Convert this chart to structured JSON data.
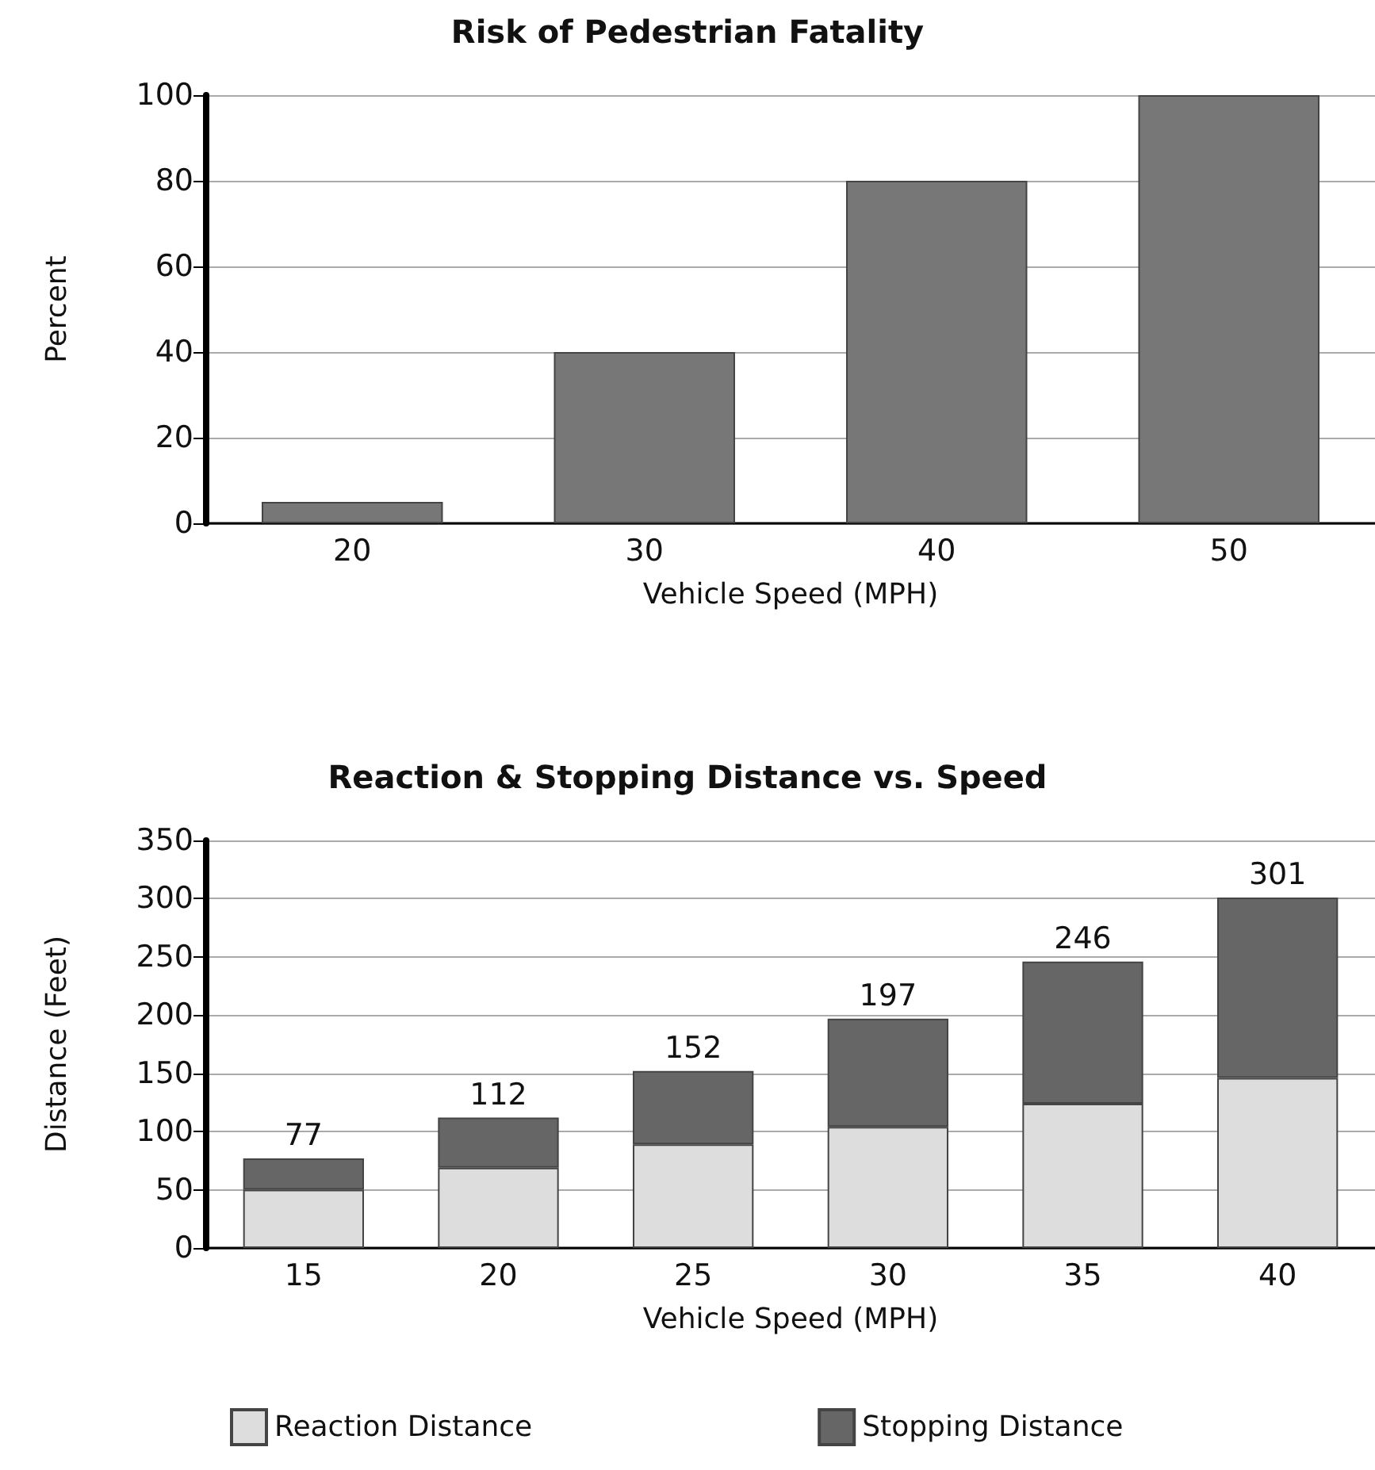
{
  "chart_data": [
    {
      "type": "bar",
      "title": "Risk of Pedestrian Fatality",
      "xlabel": "Vehicle Speed (MPH)",
      "ylabel": "Percent",
      "categories": [
        "20",
        "30",
        "40",
        "50"
      ],
      "values": [
        5,
        40,
        80,
        100
      ],
      "color": "#777777",
      "ylim": [
        0,
        100
      ],
      "yticks": [
        0,
        20,
        40,
        60,
        80,
        100
      ],
      "grid": "y"
    },
    {
      "type": "bar",
      "title": "Reaction & Stopping Distance vs. Speed",
      "xlabel": "Vehicle Speed (MPH)",
      "ylabel": "Distance (Feet)",
      "categories": [
        "15",
        "20",
        "25",
        "30",
        "35",
        "40"
      ],
      "stacked": true,
      "series": [
        {
          "name": "Reaction Distance",
          "color": "#dddddd",
          "values": [
            50,
            69,
            89,
            104,
            124,
            146
          ]
        },
        {
          "name": "Stopping Distance",
          "color": "#666666",
          "values": [
            27,
            43,
            63,
            93,
            122,
            155
          ]
        }
      ],
      "totals": [
        "77",
        "112",
        "152",
        "197",
        "246",
        "301"
      ],
      "ylim": [
        0,
        350
      ],
      "yticks": [
        0,
        50,
        100,
        150,
        200,
        250,
        300,
        350
      ],
      "grid": "y",
      "legend": "bottom"
    }
  ]
}
